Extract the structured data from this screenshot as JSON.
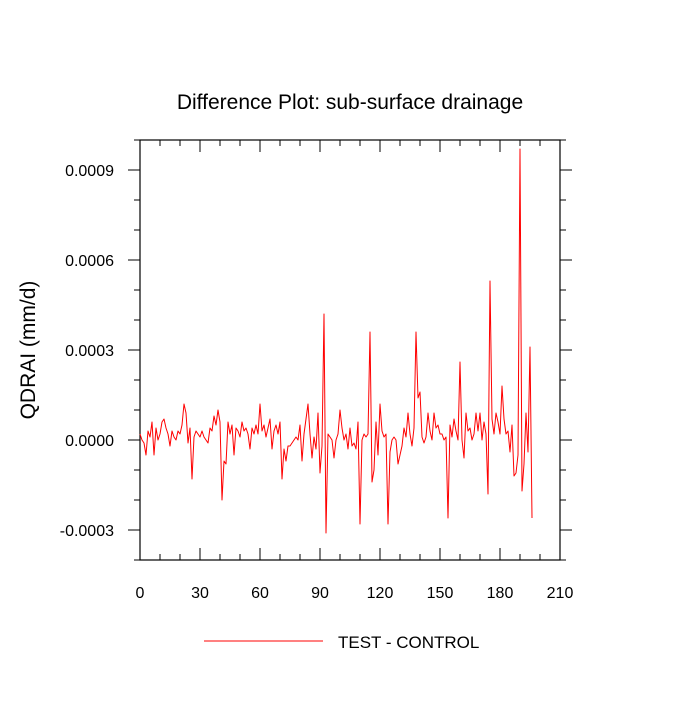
{
  "chart_data": {
    "type": "line",
    "title": "Difference Plot: sub-surface drainage",
    "xlabel": "",
    "ylabel": "QDRAI  (mm/d)",
    "xlim": [
      0,
      210
    ],
    "ylim": [
      -0.0004,
      0.001
    ],
    "x_ticks": [
      0,
      30,
      60,
      90,
      120,
      150,
      180,
      210
    ],
    "x_tick_labels": [
      "0",
      "30",
      "60",
      "90",
      "120",
      "150",
      "180",
      "210"
    ],
    "y_ticks": [
      -0.0003,
      0.0,
      0.0003,
      0.0006,
      0.0009
    ],
    "y_tick_labels": [
      "-0.0003",
      "0.0000",
      "0.0003",
      "0.0006",
      "0.0009"
    ],
    "grid": false,
    "legend_position": "bottom-center",
    "series": [
      {
        "name": "TEST - CONTROL",
        "color": "#ff0000",
        "x_start": 0,
        "x_step": 1,
        "values": [
          2e-05,
          0.0,
          -1e-05,
          -5e-05,
          3e-05,
          1e-05,
          6e-05,
          -5e-05,
          4e-05,
          0.0,
          2e-05,
          6e-05,
          7e-05,
          4e-05,
          2e-05,
          -2e-05,
          3e-05,
          1e-05,
          0.0,
          3e-05,
          2e-05,
          5e-05,
          0.00012,
          9e-05,
          -1e-05,
          4e-05,
          -0.00013,
          1e-05,
          3e-05,
          2e-05,
          1e-05,
          3e-05,
          1e-05,
          0.0,
          -1e-05,
          4e-05,
          3e-05,
          8e-05,
          5e-05,
          0.0001,
          6e-05,
          -0.0002,
          -7e-05,
          -8e-05,
          6e-05,
          2e-05,
          5e-05,
          -5e-05,
          4e-05,
          3e-05,
          1e-05,
          6e-05,
          3e-05,
          4e-05,
          2e-05,
          -3e-05,
          4e-05,
          2e-05,
          5e-05,
          2e-05,
          0.00012,
          3e-05,
          5e-05,
          1e-05,
          4e-05,
          7e-05,
          -3e-05,
          3e-05,
          5e-05,
          2e-05,
          6e-05,
          -0.00013,
          -3e-05,
          -7e-05,
          -2e-05,
          -2e-05,
          -1e-05,
          0.0,
          1e-05,
          0.0,
          5e-05,
          -7e-05,
          2e-05,
          7e-05,
          0.00012,
          2e-05,
          -6e-05,
          1e-05,
          -3e-05,
          9e-05,
          -0.00011,
          -2e-05,
          0.00042,
          -0.00031,
          2e-05,
          1e-05,
          0.0,
          -6e-05,
          0.0,
          2e-05,
          0.0001,
          4e-05,
          0.0,
          2e-05,
          -3e-05,
          4e-05,
          -2e-05,
          -1e-05,
          -3e-05,
          6e-05,
          -0.00028,
          0.0,
          2e-05,
          1e-05,
          2e-05,
          0.00036,
          -0.00014,
          -0.0001,
          6e-05,
          -5e-05,
          0.00012,
          3e-05,
          1e-05,
          2e-05,
          -0.00028,
          -4e-05,
          0.0,
          1e-05,
          0.0,
          -8e-05,
          -5e-05,
          -2e-05,
          4e-05,
          1e-05,
          9e-05,
          2e-05,
          -2e-05,
          4e-05,
          0.00036,
          0.00014,
          0.00016,
          1e-05,
          -1e-05,
          1e-05,
          9e-05,
          3e-05,
          0.0,
          9e-05,
          4e-05,
          5e-05,
          2e-05,
          2e-05,
          0.0,
          1e-05,
          -0.00026,
          5e-05,
          1e-05,
          7e-05,
          3e-05,
          0.0,
          0.00026,
          0.0,
          -6e-05,
          9e-05,
          3e-05,
          4e-05,
          0.0,
          2e-05,
          9e-05,
          3e-05,
          9e-05,
          0.0,
          6e-05,
          2e-05,
          -0.00018,
          0.00053,
          7e-05,
          2e-05,
          9e-05,
          6e-05,
          2e-05,
          0.00018,
          7e-05,
          2e-05,
          3e-05,
          -4e-05,
          5e-05,
          -0.00012,
          -0.00011,
          -5e-05,
          0.00097,
          -0.00017,
          -8e-05,
          9e-05,
          -4e-05,
          0.00031,
          -0.00026
        ]
      }
    ]
  }
}
